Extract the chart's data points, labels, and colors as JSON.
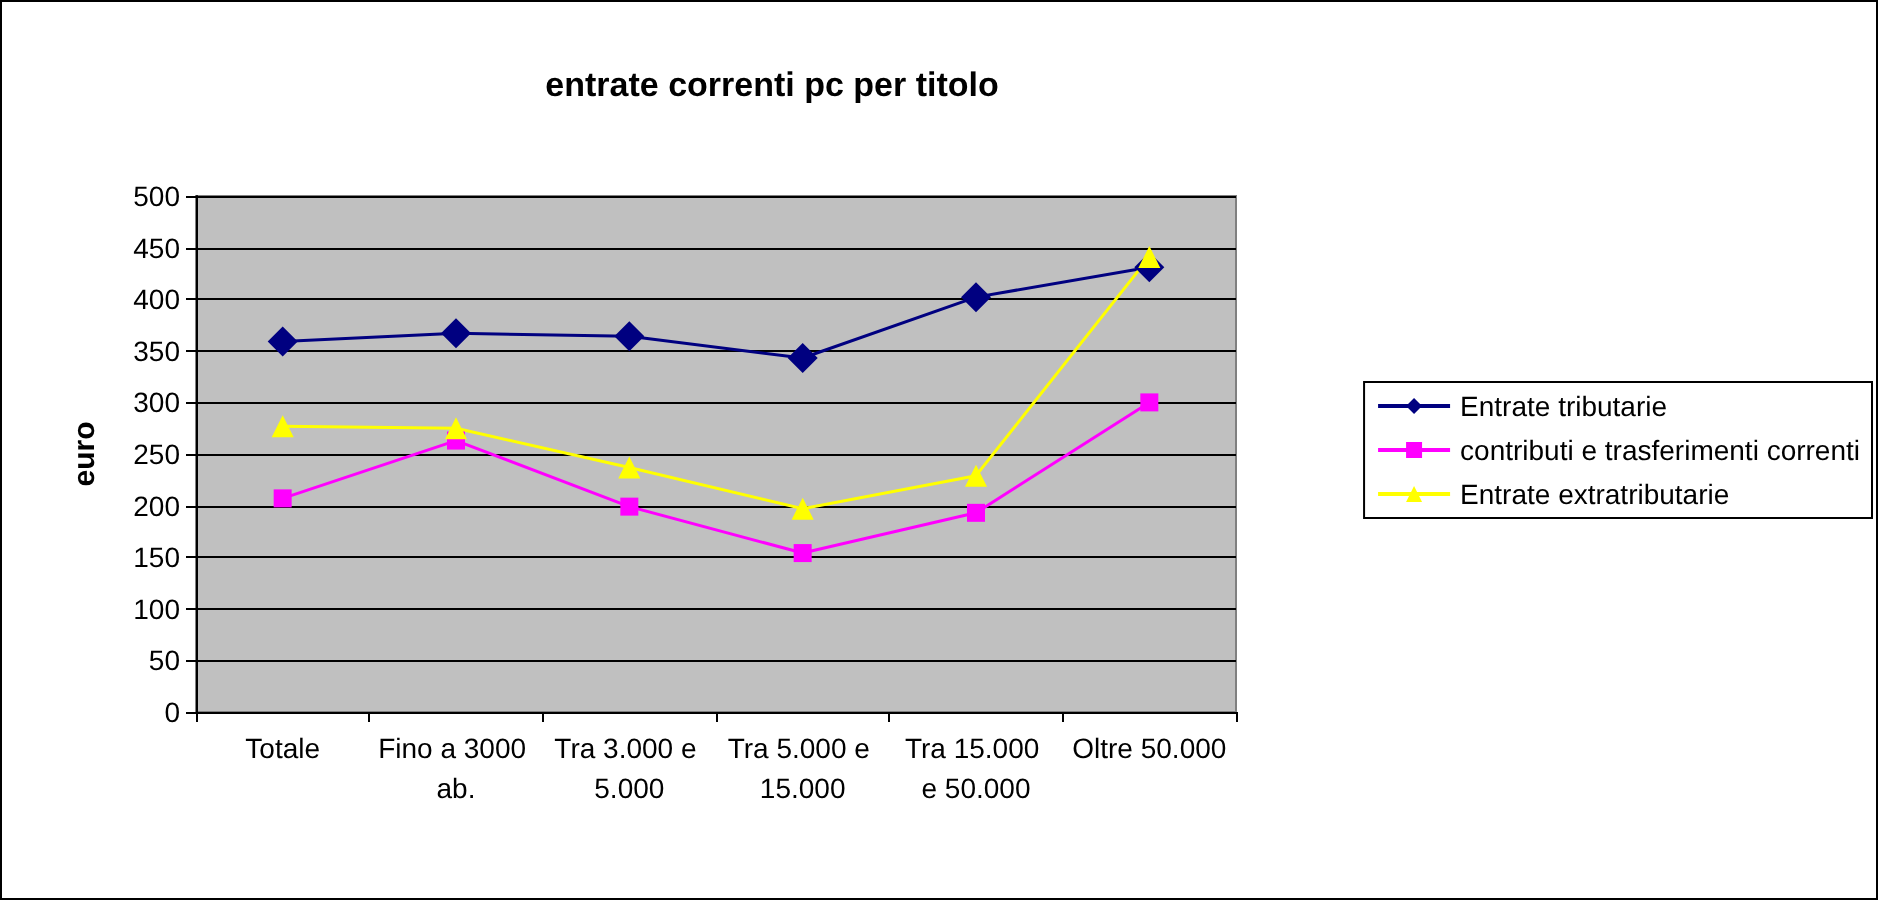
{
  "chart_data": {
    "type": "line",
    "title": "entrate correnti pc per titolo",
    "ylabel": "euro",
    "categories": [
      "Totale",
      "Fino a 3000 ab.",
      "Tra 3.000 e 5.000",
      "Tra 5.000 e 15.000",
      "Tra 15.000 e 50.000",
      "Oltre 50.000"
    ],
    "series": [
      {
        "name": "Entrate tributarie",
        "color": "#000080",
        "marker": "diamond",
        "values": [
          359,
          367,
          364,
          343,
          402,
          431
        ]
      },
      {
        "name": "contributi e trasferimenti correnti",
        "color": "#ff00ff",
        "marker": "square",
        "values": [
          207,
          263,
          199,
          154,
          193,
          300
        ]
      },
      {
        "name": "Entrate extratributarie",
        "color": "#ffff00",
        "marker": "triangle",
        "values": [
          277,
          275,
          237,
          197,
          229,
          441
        ]
      }
    ],
    "ylim": [
      0,
      500
    ],
    "yticks": [
      0,
      50,
      100,
      150,
      200,
      250,
      300,
      350,
      400,
      450,
      500
    ],
    "grid": "y",
    "legend": "right"
  }
}
